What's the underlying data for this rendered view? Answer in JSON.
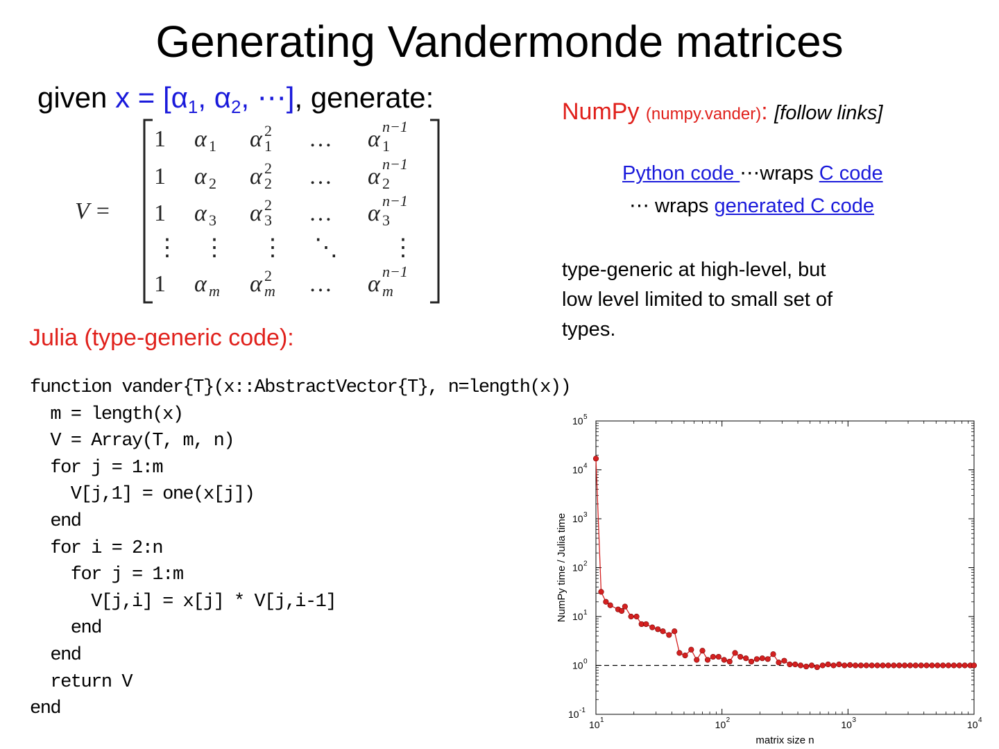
{
  "slide": {
    "title": "Generating Vandermonde matrices",
    "given": {
      "prefix": "given ",
      "x_expr": "x = [α",
      "sub1": "1",
      "sep": ", α",
      "sub2": "2",
      "suffix_blue": ", ⋯]",
      "suffix": ", generate:"
    },
    "matrix": {
      "lhs": "V =",
      "rows": [
        [
          "1",
          "α",
          "1",
          "α",
          "1",
          "2",
          "…",
          "α",
          "1",
          "n−1"
        ],
        [
          "1",
          "α",
          "2",
          "α",
          "2",
          "2",
          "…",
          "α",
          "2",
          "n−1"
        ],
        [
          "1",
          "α",
          "3",
          "α",
          "3",
          "2",
          "…",
          "α",
          "3",
          "n−1"
        ],
        [
          "1",
          "α",
          "m",
          "α",
          "m",
          "2",
          "…",
          "α",
          "m",
          "n−1"
        ]
      ],
      "vdots": "⋮",
      "ddots": "⋱"
    },
    "julia_heading": "Julia (type-generic code):",
    "code_lines": [
      "function vander{T}(x::AbstractVector{T}, n=length(x))",
      "  m = length(x)",
      "  V = Array(T, m, n)",
      "  for j = 1:m",
      "    V[j,1] = one(x[j])",
      "  end",
      "  for i = 2:n",
      "    for j = 1:m",
      "      V[j,i] = x[j] * V[j,i-1]",
      "    end",
      "  end",
      "  return V",
      "end"
    ],
    "numpy": {
      "label": "NumPy ",
      "module": "(numpy.vander)",
      "colon": ": ",
      "follow": "[follow links]",
      "python_link": " Python code ",
      "wraps1": " ⋯wraps ",
      "c_link": "C code ",
      "wraps2": "⋯  wraps ",
      "gen_link": "generated C code"
    },
    "note_lines": [
      "type-generic at high-level, but",
      "low level limited to small set of",
      "types."
    ]
  },
  "chart_data": {
    "type": "line",
    "title": "",
    "xlabel": "matrix size n",
    "ylabel": "NumPy time / Julia time",
    "xscale": "log",
    "yscale": "log",
    "xlim": [
      10,
      10000
    ],
    "ylim": [
      0.1,
      100000
    ],
    "x_tick_labels": [
      {
        "base": "10",
        "exp": "1"
      },
      {
        "base": "10",
        "exp": "2"
      },
      {
        "base": "10",
        "exp": "3"
      },
      {
        "base": "10",
        "exp": "4"
      }
    ],
    "y_tick_labels": [
      {
        "base": "10",
        "exp": "-1"
      },
      {
        "base": "10",
        "exp": "0"
      },
      {
        "base": "10",
        "exp": "1"
      },
      {
        "base": "10",
        "exp": "2"
      },
      {
        "base": "10",
        "exp": "3"
      },
      {
        "base": "10",
        "exp": "4"
      },
      {
        "base": "10",
        "exp": "5"
      }
    ],
    "reference_line": {
      "y": 1,
      "style": "dashed",
      "color": "#000000"
    },
    "grid": false,
    "series_color": "#d42020",
    "series": [
      {
        "x": [
          10,
          11,
          12,
          13,
          15,
          16,
          17,
          19,
          21,
          23,
          25,
          28,
          31,
          34,
          38,
          42,
          46,
          51,
          57,
          63,
          70,
          77,
          85,
          94,
          104,
          115,
          127,
          140,
          155,
          171,
          189,
          209,
          231,
          255,
          282,
          312,
          345,
          381,
          421,
          466,
          515,
          569,
          629,
          695,
          768,
          849,
          938,
          1037,
          1146,
          1266,
          1399,
          1546,
          1709,
          1889,
          2087,
          2307,
          2549,
          2817,
          3113,
          3440,
          3802,
          4201,
          4642,
          5130,
          5669,
          6264,
          6922,
          7650,
          8453,
          9341,
          10000
        ],
        "y": [
          17000,
          32,
          20,
          17,
          14,
          13,
          16,
          10,
          10,
          7,
          7,
          6,
          5.5,
          5,
          4.2,
          5,
          1.8,
          1.6,
          2.1,
          1.3,
          2,
          1.3,
          1.5,
          1.5,
          1.3,
          1.2,
          1.8,
          1.5,
          1.4,
          1.2,
          1.35,
          1.4,
          1.35,
          1.7,
          1.15,
          1.25,
          1.05,
          1.05,
          1.0,
          0.95,
          1.0,
          0.92,
          1.0,
          1.05,
          1.0,
          1.05,
          1.0,
          1.02,
          1.0,
          1.0,
          1.0,
          1.0,
          1.0,
          1.0,
          1.0,
          1.0,
          1.0,
          1.0,
          1.0,
          1.0,
          1.0,
          1.0,
          1.0,
          1.0,
          1.0,
          1.0,
          1.0,
          1.0,
          1.0,
          1.0,
          1.0
        ]
      }
    ]
  }
}
